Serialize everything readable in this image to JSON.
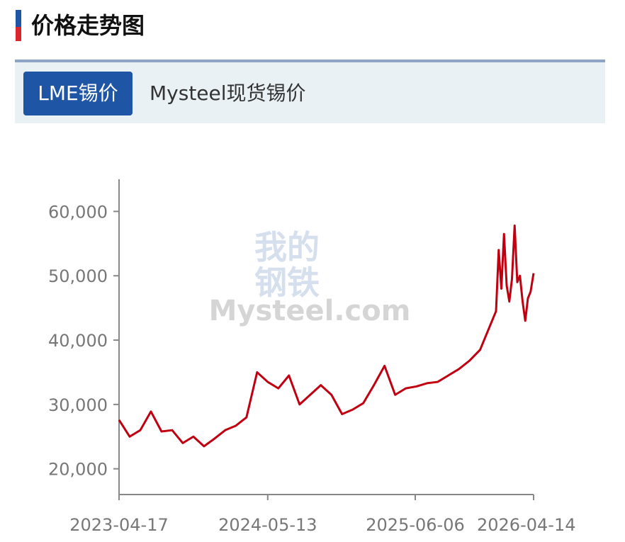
{
  "header": {
    "title": "价格走势图"
  },
  "tabs": [
    {
      "label": "LME锡价",
      "active": true
    },
    {
      "label": "Mysteel现货锡价",
      "active": false
    }
  ],
  "chart_data": {
    "type": "line",
    "watermark": {
      "top": "我的",
      "bottom": "钢铁",
      "brand": "Mysteel.com"
    },
    "x": [
      "2023-04-17",
      "2023-05-15",
      "2023-06-12",
      "2023-07-10",
      "2023-08-07",
      "2023-09-04",
      "2023-10-02",
      "2023-10-30",
      "2023-11-27",
      "2023-12-25",
      "2024-01-22",
      "2024-02-19",
      "2024-03-18",
      "2024-04-15",
      "2024-05-13",
      "2024-06-10",
      "2024-07-08",
      "2024-08-05",
      "2024-09-02",
      "2024-09-30",
      "2024-10-28",
      "2024-11-25",
      "2024-12-23",
      "2025-01-20",
      "2025-02-17",
      "2025-03-17",
      "2025-04-14",
      "2025-05-12",
      "2025-06-09",
      "2025-07-07",
      "2025-08-04",
      "2025-09-01",
      "2025-09-29",
      "2025-10-27",
      "2025-11-24",
      "2025-12-22",
      "2026-01-05",
      "2026-01-12",
      "2026-01-19",
      "2026-01-26",
      "2026-02-02",
      "2026-02-09",
      "2026-02-16",
      "2026-02-23",
      "2026-03-02",
      "2026-03-09",
      "2026-03-16",
      "2026-03-23",
      "2026-03-30",
      "2026-04-06",
      "2026-04-14"
    ],
    "series": [
      {
        "color": "#c00010",
        "values": [
          27600,
          25000,
          26000,
          28900,
          25800,
          26000,
          24000,
          25000,
          23500,
          24700,
          26000,
          26700,
          28000,
          35000,
          33500,
          32500,
          34500,
          30000,
          31500,
          33000,
          31500,
          28500,
          29200,
          30200,
          33000,
          36000,
          31500,
          32500,
          32800,
          33300,
          33500,
          34500,
          35500,
          36800,
          38500,
          42500,
          44500,
          54000,
          48000,
          56500,
          48500,
          46000,
          49500,
          57800,
          49000,
          50000,
          46000,
          43000,
          46500,
          47500,
          50400
        ]
      }
    ],
    "xlim": [
      "2023-04-17",
      "2026-04-14"
    ],
    "xticks": [
      "2023-04-17",
      "2024-05-13",
      "2025-06-06",
      "2026-04-14"
    ],
    "ylim": [
      16000,
      65000
    ],
    "yticks": [
      {
        "value": 20000,
        "label": "20,000"
      },
      {
        "value": 30000,
        "label": "30,000"
      },
      {
        "value": 40000,
        "label": "40,000"
      },
      {
        "value": 50000,
        "label": "50,000"
      },
      {
        "value": 60000,
        "label": "60,000"
      }
    ],
    "grid": false
  }
}
